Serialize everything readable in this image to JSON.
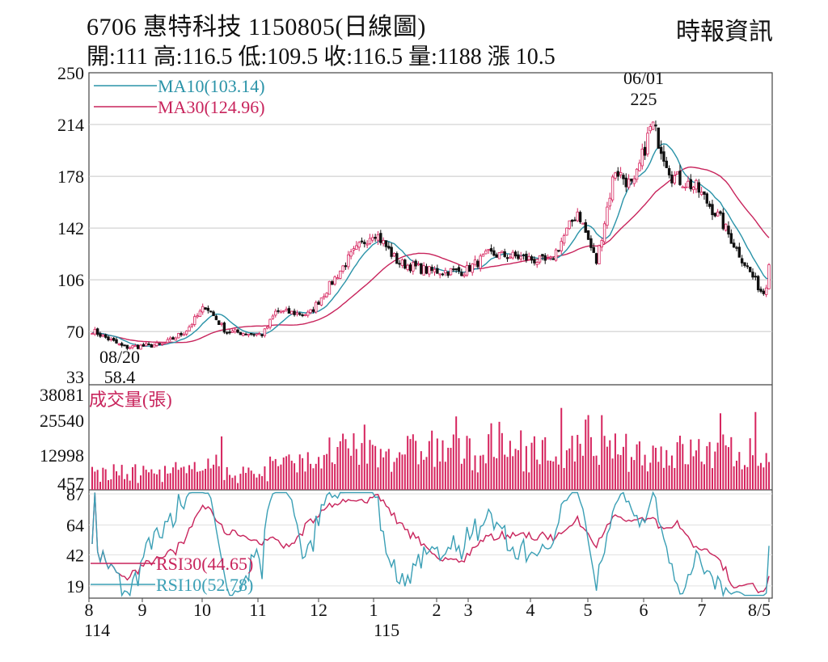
{
  "header": {
    "title": "6706  惠特科技 1150805(日線圖)",
    "brand": "時報資訊",
    "ohlc": "開:111 高:116.5 低:109.5 收:116.5 量:1188 漲 10.5"
  },
  "colors": {
    "up": "#d6245e",
    "down": "#111111",
    "ma10": "#2a93a8",
    "ma30": "#c8245c",
    "rsi30": "#c8245c",
    "rsi10": "#3a9fb5",
    "volume": "#d6245e",
    "grid": "#c8c8c8",
    "frame": "#444444"
  },
  "chart_data": {
    "type": "candlestick",
    "x_ticks": [
      "8",
      "9",
      "10",
      "11",
      "12",
      "1",
      "2",
      "3",
      "4",
      "5",
      "6",
      "7",
      "8/5"
    ],
    "x_years": [
      "114",
      "115"
    ],
    "price": {
      "ylim": [
        33,
        250
      ],
      "y_ticks": [
        "250",
        "214",
        "178",
        "142",
        "106",
        "70",
        "33"
      ],
      "legend": [
        {
          "name": "MA10(103.14)",
          "color": "#2a93a8"
        },
        {
          "name": "MA30(124.96)",
          "color": "#c8245c"
        }
      ],
      "annotations": [
        {
          "text": "06/01",
          "value": "225",
          "type": "high"
        },
        {
          "text": "08/20",
          "value": "58.4",
          "type": "low"
        }
      ],
      "close_path": [
        [
          "2025-08-01",
          72
        ],
        [
          "2025-08-20",
          59
        ],
        [
          "2025-09-10",
          61
        ],
        [
          "2025-09-22",
          70
        ],
        [
          "2025-10-03",
          88
        ],
        [
          "2025-10-14",
          70
        ],
        [
          "2025-11-03",
          68
        ],
        [
          "2025-11-10",
          84
        ],
        [
          "2025-11-28",
          82
        ],
        [
          "2025-12-20",
          122
        ],
        [
          "2026-01-02",
          140
        ],
        [
          "2026-01-15",
          118
        ],
        [
          "2026-02-01",
          112
        ],
        [
          "2026-02-20",
          112
        ],
        [
          "2026-03-05",
          124
        ],
        [
          "2026-03-20",
          122
        ],
        [
          "2026-04-07",
          118
        ],
        [
          "2026-04-22",
          154
        ],
        [
          "2026-05-02",
          118
        ],
        [
          "2026-05-12",
          183
        ],
        [
          "2026-05-22",
          170
        ],
        [
          "2026-06-01",
          215
        ],
        [
          "2026-06-12",
          178
        ],
        [
          "2026-06-25",
          170
        ],
        [
          "2026-07-08",
          148
        ],
        [
          "2026-07-20",
          120
        ],
        [
          "2026-07-31",
          96
        ],
        [
          "2026-08-05",
          116.5
        ]
      ]
    },
    "volume": {
      "title": "成交量(張)",
      "y_ticks": [
        "38081",
        "25540",
        "12998",
        "457"
      ],
      "ylim": [
        0,
        38081
      ]
    },
    "rsi": {
      "y_ticks": [
        "87",
        "64",
        "42",
        "19"
      ],
      "ylim": [
        10,
        90
      ],
      "legend": [
        {
          "name": "RSI30(44.65)",
          "color": "#c8245c"
        },
        {
          "name": "RSI10(52.78)",
          "color": "#3a9fb5"
        }
      ]
    }
  }
}
